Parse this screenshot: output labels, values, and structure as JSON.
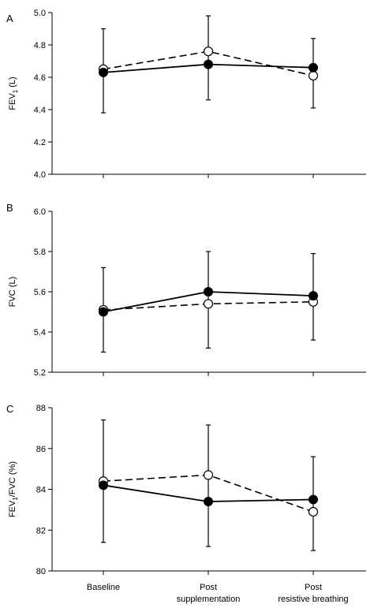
{
  "chart_data": [
    {
      "type": "line",
      "panel": "A",
      "ylabel_main": "FEV",
      "ylabel_sub": "1",
      "ylabel_tail": " (L)",
      "ylim": [
        4.0,
        5.0
      ],
      "yticks": [
        4.0,
        4.2,
        4.4,
        4.6,
        4.8,
        5.0
      ],
      "ytick_labels": [
        "4.0",
        "4.2",
        "4.4",
        "4.6",
        "4.8",
        "5.0"
      ],
      "categories": [
        "Baseline",
        "Post supplementation",
        "Post resistive breathing"
      ],
      "series": [
        {
          "style": "solid-filled",
          "values": [
            4.63,
            4.68,
            4.66
          ],
          "error_upper": [
            4.9,
            4.98,
            4.84
          ],
          "error_lower": [
            4.38,
            4.46,
            4.41
          ]
        },
        {
          "style": "dashed-open",
          "values": [
            4.65,
            4.76,
            4.61
          ]
        }
      ]
    },
    {
      "type": "line",
      "panel": "B",
      "ylabel_main": "FVC (L)",
      "ylabel_sub": "",
      "ylabel_tail": "",
      "ylim": [
        5.2,
        6.0
      ],
      "yticks": [
        5.2,
        5.4,
        5.6,
        5.8,
        6.0
      ],
      "ytick_labels": [
        "5.2",
        "5.4",
        "5.6",
        "5.8",
        "6.0"
      ],
      "categories": [
        "Baseline",
        "Post supplementation",
        "Post resistive breathing"
      ],
      "series": [
        {
          "style": "solid-filled",
          "values": [
            5.5,
            5.6,
            5.58
          ],
          "error_upper": [
            5.72,
            5.8,
            5.79
          ],
          "error_lower": [
            5.3,
            5.32,
            5.36
          ]
        },
        {
          "style": "dashed-open",
          "values": [
            5.51,
            5.54,
            5.55
          ]
        }
      ]
    },
    {
      "type": "line",
      "panel": "C",
      "ylabel_main": "FEV",
      "ylabel_sub": "1",
      "ylabel_tail": "/FVC (%)",
      "ylim": [
        80,
        88
      ],
      "yticks": [
        80,
        82,
        84,
        86,
        88
      ],
      "ytick_labels": [
        "80",
        "82",
        "84",
        "86",
        "88"
      ],
      "categories": [
        "Baseline",
        "Post supplementation",
        "Post resistive breathing"
      ],
      "series": [
        {
          "style": "solid-filled",
          "values": [
            84.2,
            83.4,
            83.5
          ],
          "error_upper": [
            87.4,
            87.15,
            85.6
          ],
          "error_lower": [
            81.4,
            81.2,
            81.0
          ]
        },
        {
          "style": "dashed-open",
          "values": [
            84.4,
            84.7,
            82.9
          ]
        }
      ]
    }
  ],
  "x_category_labels": [
    {
      "line1": "Baseline",
      "line2": ""
    },
    {
      "line1": "Post",
      "line2": "supplementation"
    },
    {
      "line1": "Post",
      "line2": "resistive breathing"
    }
  ]
}
